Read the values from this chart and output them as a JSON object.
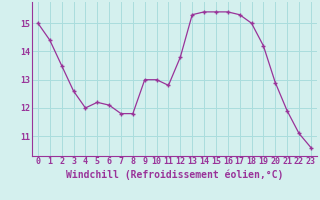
{
  "x": [
    0,
    1,
    2,
    3,
    4,
    5,
    6,
    7,
    8,
    9,
    10,
    11,
    12,
    13,
    14,
    15,
    16,
    17,
    18,
    19,
    20,
    21,
    22,
    23
  ],
  "y": [
    15.0,
    14.4,
    13.5,
    12.6,
    12.0,
    12.2,
    12.1,
    11.8,
    11.8,
    13.0,
    13.0,
    12.8,
    13.8,
    15.3,
    15.4,
    15.4,
    15.4,
    15.3,
    15.0,
    14.2,
    12.9,
    11.9,
    11.1,
    10.6
  ],
  "line_color": "#993399",
  "marker": "+",
  "marker_size": 3,
  "marker_linewidth": 1.0,
  "bg_color": "#d4f0ee",
  "grid_color": "#aadddd",
  "xlabel": "Windchill (Refroidissement éolien,°C)",
  "xlabel_color": "#993399",
  "ylabel_ticks": [
    11,
    12,
    13,
    14,
    15
  ],
  "xlim": [
    -0.5,
    23.5
  ],
  "ylim": [
    10.3,
    15.75
  ],
  "tick_label_color": "#993399",
  "tick_fontsize": 6.0,
  "xlabel_fontsize": 7.0,
  "line_width": 0.9
}
